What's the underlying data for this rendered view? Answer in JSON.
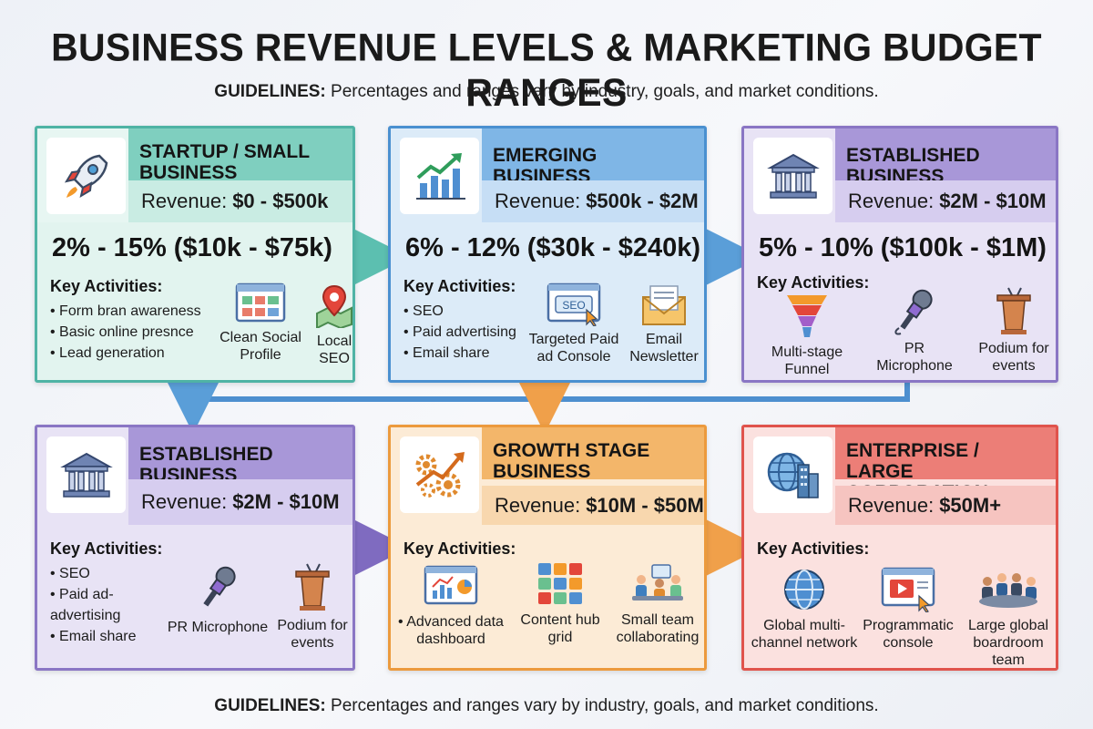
{
  "header": {
    "title": "BUSINESS REVENUE LEVELS & MARKETING BUDGET RANGES",
    "guidelines_label": "GUIDELINES:",
    "guidelines_text": "Percentages and ranges vary by industry, goals, and market conditions."
  },
  "footer": {
    "guidelines_label": "GUIDELINES:",
    "guidelines_text": "Percentages and ranges vary by industry, goals, and market conditions."
  },
  "revenue_label": "Revenue:",
  "key_activities_label": "Key Activities:",
  "stages": [
    {
      "name": "STARTUP / SMALL BUSINESS",
      "revenue": "$0 - $500k",
      "budget": "2% - 15% ($10k - $75k)",
      "icon": "rocket-icon",
      "color": "#4fb3a5",
      "activities": [
        "Form bran awareness",
        "Basic online presnce",
        "Lead generation"
      ],
      "tools": [
        {
          "label": "Clean Social Profile",
          "icon": "social-profile-icon"
        },
        {
          "label": "Local SEO",
          "icon": "map-pin-icon"
        }
      ]
    },
    {
      "name": "EMERGING BUSINESS",
      "revenue": "$500k - $2M",
      "budget": "6% - 12% ($30k - $240k)",
      "icon": "growth-chart-icon",
      "color": "#4a90d0",
      "activities": [
        "SEO",
        "Paid advertising",
        "Email share"
      ],
      "tools": [
        {
          "label": "Targeted Paid ad Console",
          "icon": "seo-console-icon",
          "icon_text": "SEO"
        },
        {
          "label": "Email Newsletter",
          "icon": "envelope-icon"
        }
      ]
    },
    {
      "name": "ESTABLISHED BUSINESS",
      "revenue": "$2M - $10M",
      "budget": "5% - 10% ($100k - $1M)",
      "icon": "bank-building-icon",
      "color": "#8a76c4",
      "activities": [],
      "tools": [
        {
          "label": "Multi-stage Funnel",
          "icon": "funnel-icon"
        },
        {
          "label": "PR Microphone",
          "icon": "microphone-icon"
        },
        {
          "label": "Podium for events",
          "icon": "podium-icon"
        }
      ]
    },
    {
      "name": "ESTABLISHED BUSINESS",
      "revenue": "$2M - $10M",
      "icon": "bank-building-icon",
      "color": "#8a76c4",
      "activities": [
        "SEO",
        "Paid ad-advertising",
        "Email share"
      ],
      "tools": [
        {
          "label": "PR Microphone",
          "icon": "microphone-icon"
        },
        {
          "label": "Podium for events",
          "icon": "podium-icon"
        }
      ]
    },
    {
      "name": "GROWTH STAGE BUSINESS",
      "revenue": "$10M - $50M",
      "icon": "gears-growth-icon",
      "color": "#ec9a3d",
      "activities": [],
      "tools": [
        {
          "label": "• Advanced data dashboard",
          "icon": "dashboard-icon"
        },
        {
          "label": "Content hub grid",
          "icon": "content-grid-icon"
        },
        {
          "label": "Small team collaborating",
          "icon": "team-icon"
        }
      ]
    },
    {
      "name": "ENTERPRISE / LARGE CORPORATION",
      "revenue": "$50M+",
      "icon": "globe-buildings-icon",
      "color": "#e0534c",
      "activities": [],
      "tools": [
        {
          "label": "Global multi-channel network",
          "icon": "globe-icon"
        },
        {
          "label": "Programmatic console",
          "icon": "programmatic-console-icon"
        },
        {
          "label": "Large global boardroom team",
          "icon": "boardroom-icon"
        }
      ]
    }
  ]
}
